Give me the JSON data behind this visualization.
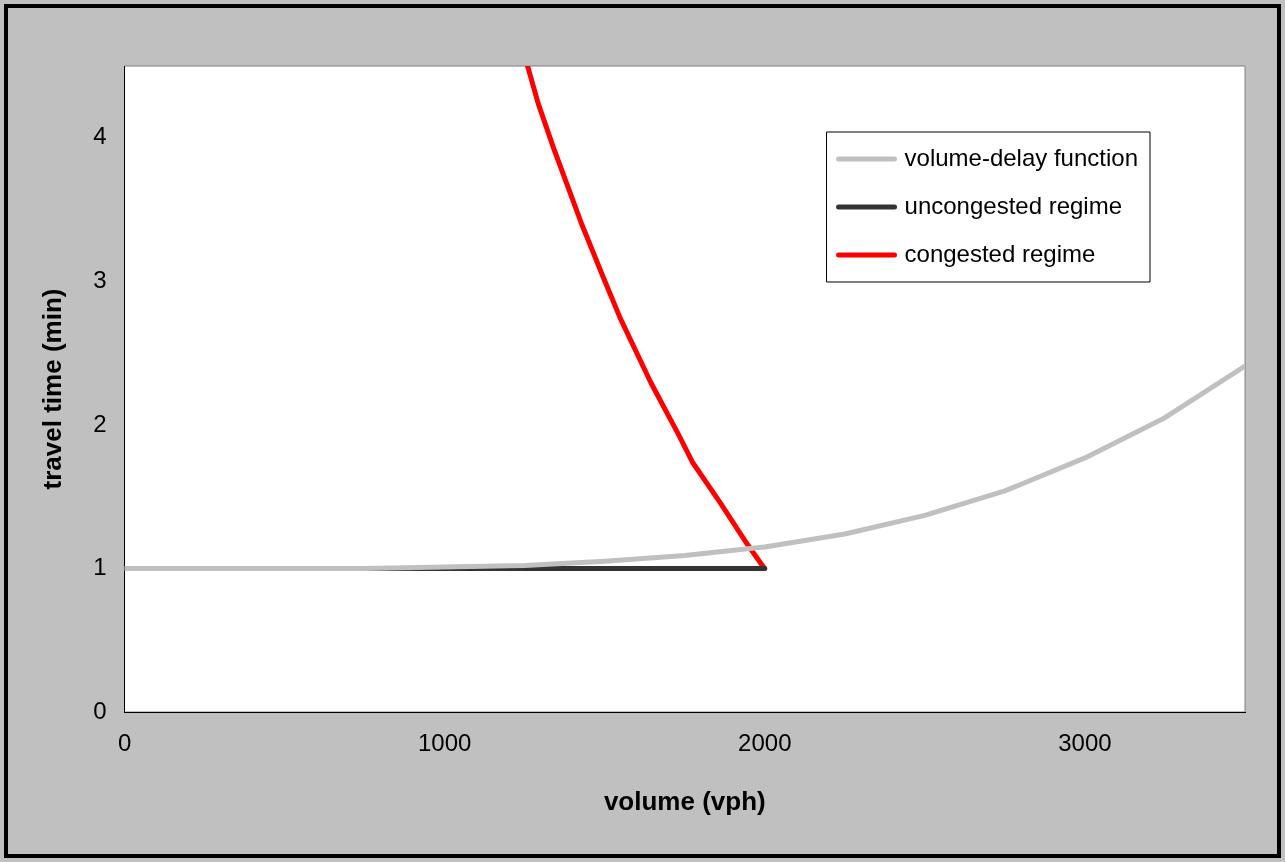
{
  "chart_data": {
    "type": "line",
    "xlabel": "volume (vph)",
    "ylabel": "travel time (min)",
    "xlim": [
      0,
      3500
    ],
    "xticks": [
      0,
      1000,
      2000,
      3000
    ],
    "ylim": [
      0,
      4.5
    ],
    "yticks": [
      0,
      1,
      2,
      3,
      4
    ],
    "grid": false,
    "legend": "top right",
    "marker": "none",
    "line_style": "solid",
    "series": [
      {
        "name": "volume-delay function",
        "color": "#c0c0c0",
        "x": [
          0,
          250,
          500,
          750,
          1000,
          1250,
          1500,
          1750,
          2000,
          2250,
          2500,
          2750,
          3000,
          3250,
          3500
        ],
        "values": [
          1.0,
          1.0,
          1.0,
          1.0,
          1.01,
          1.02,
          1.05,
          1.09,
          1.15,
          1.24,
          1.37,
          1.54,
          1.77,
          2.05,
          2.41
        ]
      },
      {
        "name": "uncongested regime",
        "color": "#333333",
        "x": [
          0,
          2000
        ],
        "values": [
          1.0,
          1.0
        ]
      },
      {
        "name": "congested regime",
        "color": "#ff0000",
        "x": [
          1259,
          1292,
          1340,
          1426,
          1495,
          1549,
          1645,
          1731,
          1774,
          1860,
          1945,
          1999
        ],
        "values": [
          4.5,
          4.24,
          3.93,
          3.41,
          3.03,
          2.74,
          2.29,
          1.93,
          1.74,
          1.46,
          1.17,
          1.0
        ]
      }
    ]
  }
}
